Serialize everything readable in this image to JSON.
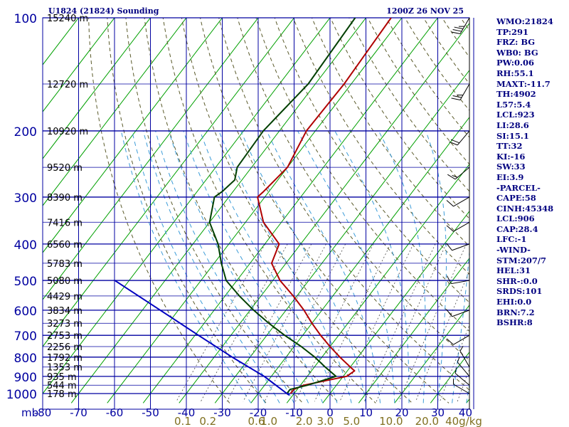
{
  "header": {
    "station": "U1824 (21824) Sounding",
    "time": "1200Z 26 NOV 25"
  },
  "indices": [
    "WMO:21824",
    "TP:291",
    "FRZ: BG",
    "WB0: BG",
    "PW:0.06",
    "RH:55.1",
    "MAXT:-11.7",
    "TH:4902",
    "L57:5.4",
    "LCL:923",
    "LI:28.6",
    "SI:15.1",
    "TT:32",
    "KI:-16",
    "SW:33",
    "EI:3.9",
    "-PARCEL-",
    "CAPE:58",
    "CINH:45348",
    "LCL:906",
    "CAP:28.4",
    "LFC:-1",
    "-WIND-",
    "STM:207/7",
    "HEL:31",
    "SHR-:0.0",
    "SRDS:101",
    "EHI:0.0",
    "BRN:7.2",
    "BSHR:8"
  ],
  "colors": {
    "grid": "#0000a0",
    "isotherm": "#00a000",
    "dry_adiabat": "#5a5a2a",
    "moist_adiabat": "#3c9cd8",
    "temperature": "#b00000",
    "dewpoint": "#004000",
    "parcel": "#0000c0",
    "mixing_ratio_label": "#807020",
    "text": "#000080"
  },
  "chart_data": {
    "type": "line",
    "title": "U1824 (21824) Sounding",
    "subtitle": "1200Z 26 NOV 25",
    "x_unit_label": "mb",
    "y_scale": "log",
    "pressure_ticks": [
      100,
      200,
      300,
      400,
      500,
      600,
      700,
      800,
      900,
      1000
    ],
    "pressure_range": [
      100,
      1050
    ],
    "temperature_ticks": [
      -80,
      -70,
      -60,
      -50,
      -40,
      -30,
      -20,
      -10,
      0,
      10,
      20,
      30,
      40
    ],
    "temperature_tick_labels": [
      "-80",
      "-70",
      "-60",
      "-50",
      "-40",
      "-30",
      "-20",
      "-10",
      "0",
      "10",
      "20",
      "30",
      "40"
    ],
    "skew_c_per_decade": 80,
    "height_labels": [
      {
        "p": 100,
        "label": "15240 m"
      },
      {
        "p": 150,
        "label": "12720 m"
      },
      {
        "p": 200,
        "label": "10920 m"
      },
      {
        "p": 250,
        "label": "9520 m"
      },
      {
        "p": 300,
        "label": "8390 m"
      },
      {
        "p": 350,
        "label": "7416 m"
      },
      {
        "p": 400,
        "label": "6560 m"
      },
      {
        "p": 450,
        "label": "5783 m"
      },
      {
        "p": 500,
        "label": "5080 m"
      },
      {
        "p": 550,
        "label": "4429 m"
      },
      {
        "p": 600,
        "label": "3834 m"
      },
      {
        "p": 650,
        "label": "3273 m"
      },
      {
        "p": 700,
        "label": "2753 m"
      },
      {
        "p": 750,
        "label": "2256 m"
      },
      {
        "p": 800,
        "label": "1792 m"
      },
      {
        "p": 850,
        "label": "1353 m"
      },
      {
        "p": 900,
        "label": "935 m"
      },
      {
        "p": 950,
        "label": "544 m"
      },
      {
        "p": 1000,
        "label": "178 m"
      }
    ],
    "mixing_ratio_labels": [
      "0.1",
      "0.2",
      "0.6",
      "1.0",
      "2.0",
      "3.0",
      "5.0",
      "10.0",
      "20.0",
      "40g/kg"
    ],
    "mixing_ratio_label_temps": [
      -41,
      -34,
      -20.5,
      -17,
      -7.2,
      -1.3,
      6,
      17,
      27,
      40
    ],
    "series": [
      {
        "key": "temperature",
        "points": [
          [
            100,
            -63
          ],
          [
            150,
            -62
          ],
          [
            200,
            -62.5
          ],
          [
            250,
            -60
          ],
          [
            290,
            -61.5
          ],
          [
            300,
            -62
          ],
          [
            350,
            -55
          ],
          [
            400,
            -46
          ],
          [
            450,
            -44
          ],
          [
            500,
            -38
          ],
          [
            550,
            -31
          ],
          [
            600,
            -25
          ],
          [
            650,
            -20
          ],
          [
            700,
            -15
          ],
          [
            750,
            -10
          ],
          [
            800,
            -5
          ],
          [
            850,
            0
          ],
          [
            870,
            2
          ],
          [
            900,
            1
          ],
          [
            950,
            -9
          ],
          [
            975,
            -11
          ],
          [
            990,
            -11
          ],
          [
            1000,
            -11
          ]
        ]
      },
      {
        "key": "dewpoint",
        "points": [
          [
            100,
            -73
          ],
          [
            150,
            -72
          ],
          [
            200,
            -74.5
          ],
          [
            250,
            -74
          ],
          [
            270,
            -72
          ],
          [
            290,
            -73
          ],
          [
            300,
            -74
          ],
          [
            350,
            -70
          ],
          [
            400,
            -63
          ],
          [
            450,
            -58
          ],
          [
            500,
            -53
          ],
          [
            550,
            -46
          ],
          [
            600,
            -39
          ],
          [
            650,
            -32
          ],
          [
            700,
            -25
          ],
          [
            750,
            -18
          ],
          [
            800,
            -12
          ],
          [
            850,
            -7
          ],
          [
            900,
            -2
          ],
          [
            950,
            -8
          ],
          [
            975,
            -12
          ],
          [
            1000,
            -12
          ]
        ]
      },
      {
        "key": "parcel",
        "points": [
          [
            500,
            -84
          ],
          [
            600,
            -65
          ],
          [
            700,
            -49
          ],
          [
            800,
            -35
          ],
          [
            900,
            -22
          ],
          [
            1000,
            -12
          ],
          [
            1010,
            -11
          ]
        ]
      }
    ],
    "wind_barbs": [
      {
        "p": 100,
        "dir": 210,
        "kt": 35
      },
      {
        "p": 150,
        "dir": 210,
        "kt": 25
      },
      {
        "p": 200,
        "dir": 220,
        "kt": 20
      },
      {
        "p": 250,
        "dir": 230,
        "kt": 15
      },
      {
        "p": 300,
        "dir": 240,
        "kt": 10
      },
      {
        "p": 350,
        "dir": 240,
        "kt": 10
      },
      {
        "p": 400,
        "dir": 250,
        "kt": 10
      },
      {
        "p": 500,
        "dir": 260,
        "kt": 10
      },
      {
        "p": 600,
        "dir": 250,
        "kt": 10
      },
      {
        "p": 700,
        "dir": 240,
        "kt": 10
      },
      {
        "p": 850,
        "dir": 330,
        "kt": 5
      },
      {
        "p": 900,
        "dir": 320,
        "kt": 5
      },
      {
        "p": 950,
        "dir": 310,
        "kt": 5
      },
      {
        "p": 1000,
        "dir": 300,
        "kt": 5
      }
    ],
    "grid": true
  }
}
